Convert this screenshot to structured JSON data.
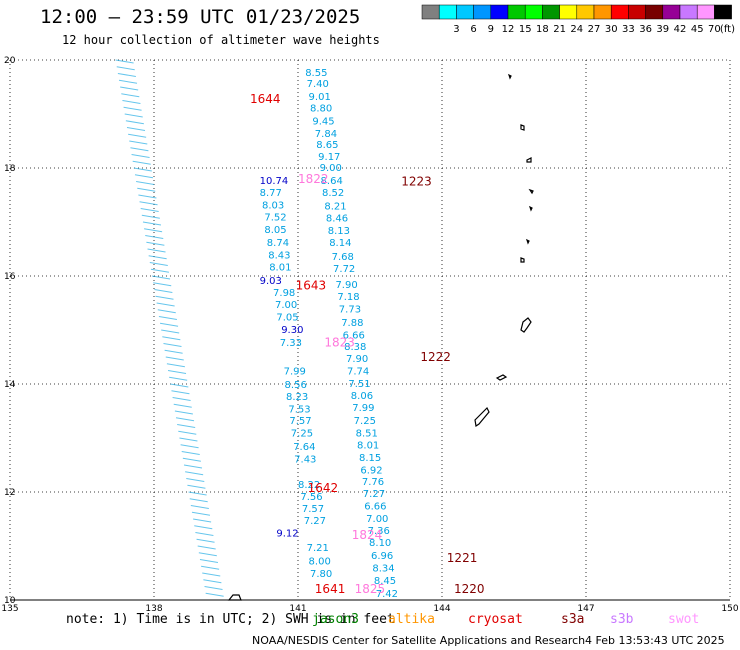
{
  "header": {
    "title": "12:00 – 23:59 UTC 01/23/2025",
    "subtitle": "12 hour collection of altimeter wave heights"
  },
  "legend": {
    "unit": "(ft)",
    "bins": [
      {
        "label": "",
        "color": "#808080"
      },
      {
        "label": "3",
        "color": "#00ffff"
      },
      {
        "label": "6",
        "color": "#00c8ff"
      },
      {
        "label": "9",
        "color": "#0096ff"
      },
      {
        "label": "12",
        "color": "#0000ff"
      },
      {
        "label": "15",
        "color": "#00c800"
      },
      {
        "label": "18",
        "color": "#00ff00"
      },
      {
        "label": "21",
        "color": "#009600"
      },
      {
        "label": "24",
        "color": "#ffff00"
      },
      {
        "label": "27",
        "color": "#ffc800"
      },
      {
        "label": "30",
        "color": "#ff9600"
      },
      {
        "label": "33",
        "color": "#ff0000"
      },
      {
        "label": "36",
        "color": "#c80000"
      },
      {
        "label": "39",
        "color": "#780000"
      },
      {
        "label": "42",
        "color": "#960096"
      },
      {
        "label": "45",
        "color": "#c878ff"
      },
      {
        "label": "70",
        "color": "#ff96ff"
      },
      {
        "label": "",
        "color": "#000000"
      }
    ]
  },
  "chart_data": {
    "type": "scatter",
    "title": "12:00 – 23:59 UTC 01/23/2025",
    "subtitle": "12 hour collection of altimeter wave heights",
    "xlim": [
      135,
      150
    ],
    "ylim": [
      10,
      20
    ],
    "xticks": [
      135,
      138,
      141,
      144,
      147,
      150
    ],
    "yticks": [
      10,
      12,
      14,
      16,
      18,
      20
    ],
    "grid": true,
    "colors": {
      "light": "#00a0e0",
      "dark": "#0000c8",
      "red": "#e00000",
      "darkred": "#800000",
      "pink": "#ff78dc"
    },
    "series": [
      {
        "name": "track 1 (right)",
        "points": [
          [
            141.15,
            19.78,
            "8.55"
          ],
          [
            141.18,
            19.57,
            "7.40"
          ],
          [
            141.22,
            19.33,
            "9.01"
          ],
          [
            141.25,
            19.12,
            "8.80"
          ],
          [
            141.3,
            18.88,
            "9.45"
          ],
          [
            141.35,
            18.65,
            "7.84"
          ],
          [
            141.38,
            18.44,
            "8.65"
          ],
          [
            141.42,
            18.22,
            "9.17"
          ],
          [
            141.45,
            18.02,
            "9.00"
          ],
          [
            141.47,
            17.78,
            "8.64"
          ],
          [
            141.5,
            17.56,
            "8.52"
          ],
          [
            141.55,
            17.31,
            "8.21"
          ],
          [
            141.58,
            17.08,
            "8.46"
          ],
          [
            141.62,
            16.85,
            "8.13"
          ],
          [
            141.65,
            16.63,
            "8.14"
          ],
          [
            141.7,
            16.37,
            "7.68"
          ],
          [
            141.73,
            16.15,
            "7.72"
          ],
          [
            141.78,
            15.85,
            "7.90"
          ],
          [
            141.82,
            15.63,
            "7.18"
          ],
          [
            141.85,
            15.4,
            "7.73"
          ],
          [
            141.9,
            15.15,
            "7.88"
          ],
          [
            141.93,
            14.92,
            "6.66"
          ],
          [
            141.96,
            14.7,
            "8.38"
          ],
          [
            142.0,
            14.48,
            "7.90"
          ],
          [
            142.02,
            14.25,
            "7.74"
          ],
          [
            142.05,
            14.02,
            "7.51"
          ],
          [
            142.1,
            13.8,
            "8.06"
          ],
          [
            142.13,
            13.57,
            "7.99"
          ],
          [
            142.16,
            13.33,
            "7.25"
          ],
          [
            142.2,
            13.1,
            "8.51"
          ],
          [
            142.23,
            12.88,
            "8.01"
          ],
          [
            142.27,
            12.65,
            "8.15"
          ],
          [
            142.3,
            12.42,
            "6.92"
          ],
          [
            142.33,
            12.2,
            "7.76"
          ],
          [
            142.35,
            11.98,
            "7.27"
          ],
          [
            142.38,
            11.75,
            "6.66"
          ],
          [
            142.42,
            11.52,
            "7.00"
          ],
          [
            142.45,
            11.3,
            "7.36"
          ],
          [
            142.48,
            11.07,
            "8.10"
          ],
          [
            142.52,
            10.83,
            "6.96"
          ],
          [
            142.55,
            10.6,
            "8.34"
          ],
          [
            142.58,
            10.37,
            "8.45"
          ],
          [
            142.62,
            10.13,
            "7.42"
          ]
        ]
      },
      {
        "name": "track 2 (middle)",
        "points": [
          [
            140.2,
            17.78,
            "10.74",
            "dark"
          ],
          [
            140.2,
            17.56,
            "8.77"
          ],
          [
            140.25,
            17.32,
            "8.03"
          ],
          [
            140.3,
            17.1,
            "7.52"
          ],
          [
            140.3,
            16.87,
            "8.05"
          ],
          [
            140.35,
            16.63,
            "8.74"
          ],
          [
            140.38,
            16.4,
            "8.43"
          ],
          [
            140.4,
            16.18,
            "8.01"
          ],
          [
            140.2,
            15.93,
            "9.03",
            "dark"
          ],
          [
            140.48,
            15.7,
            "7.98"
          ],
          [
            140.52,
            15.48,
            "7.00"
          ],
          [
            140.55,
            15.25,
            "7.05"
          ],
          [
            140.65,
            15.02,
            "9.30",
            "dark"
          ],
          [
            140.62,
            14.78,
            "7.33"
          ],
          [
            140.7,
            14.25,
            "7.99"
          ],
          [
            140.72,
            14.0,
            "8.56"
          ],
          [
            140.75,
            13.78,
            "8.23"
          ],
          [
            140.8,
            13.55,
            "7.53"
          ],
          [
            140.82,
            13.33,
            "7.57"
          ],
          [
            140.85,
            13.1,
            "7.25"
          ],
          [
            140.9,
            12.85,
            "7.64"
          ],
          [
            140.92,
            12.62,
            "7.43"
          ],
          [
            141.0,
            12.15,
            "8.22"
          ],
          [
            141.05,
            11.93,
            "7.56"
          ],
          [
            141.08,
            11.7,
            "7.57"
          ],
          [
            141.12,
            11.48,
            "7.27"
          ],
          [
            140.55,
            11.25,
            "9.12",
            "dark"
          ],
          [
            141.18,
            10.98,
            "7.21"
          ],
          [
            141.22,
            10.73,
            "8.00"
          ],
          [
            141.25,
            10.5,
            "7.80"
          ]
        ]
      },
      {
        "name": "pass labels",
        "points": [
          [
            140.0,
            19.28,
            "1644",
            "red"
          ],
          [
            141.0,
            17.8,
            "1822",
            "pink"
          ],
          [
            143.15,
            17.75,
            "1223",
            "darkred"
          ],
          [
            140.95,
            15.82,
            "1643",
            "red"
          ],
          [
            141.55,
            14.77,
            "1823",
            "pink"
          ],
          [
            143.55,
            14.5,
            "1222",
            "darkred"
          ],
          [
            141.2,
            12.07,
            "1642",
            "red"
          ],
          [
            142.12,
            11.2,
            "1824",
            "pink"
          ],
          [
            144.1,
            10.78,
            "1221",
            "darkred"
          ],
          [
            141.35,
            10.2,
            "1641",
            "red"
          ],
          [
            142.18,
            10.2,
            "1825",
            "pink"
          ],
          [
            144.25,
            10.2,
            "1220",
            "darkred"
          ]
        ]
      }
    ]
  },
  "note": {
    "prefix": "note:  1) Time is in UTC; 2) SWH is in feet",
    "sats": [
      {
        "name": "jason3",
        "color": "#008000"
      },
      {
        "name": "altika",
        "color": "#ff9600"
      },
      {
        "name": "cryosat",
        "color": "#e00000"
      },
      {
        "name": "s3a",
        "color": "#800000"
      },
      {
        "name": "s3b",
        "color": "#c878ff"
      },
      {
        "name": "swot",
        "color": "#ff96ff"
      }
    ]
  },
  "footer": {
    "credit": "NOAA/NESDIS Center for Satellite Applications and Research",
    "timestamp": "4 Feb 13:53:43 UTC 2025"
  }
}
